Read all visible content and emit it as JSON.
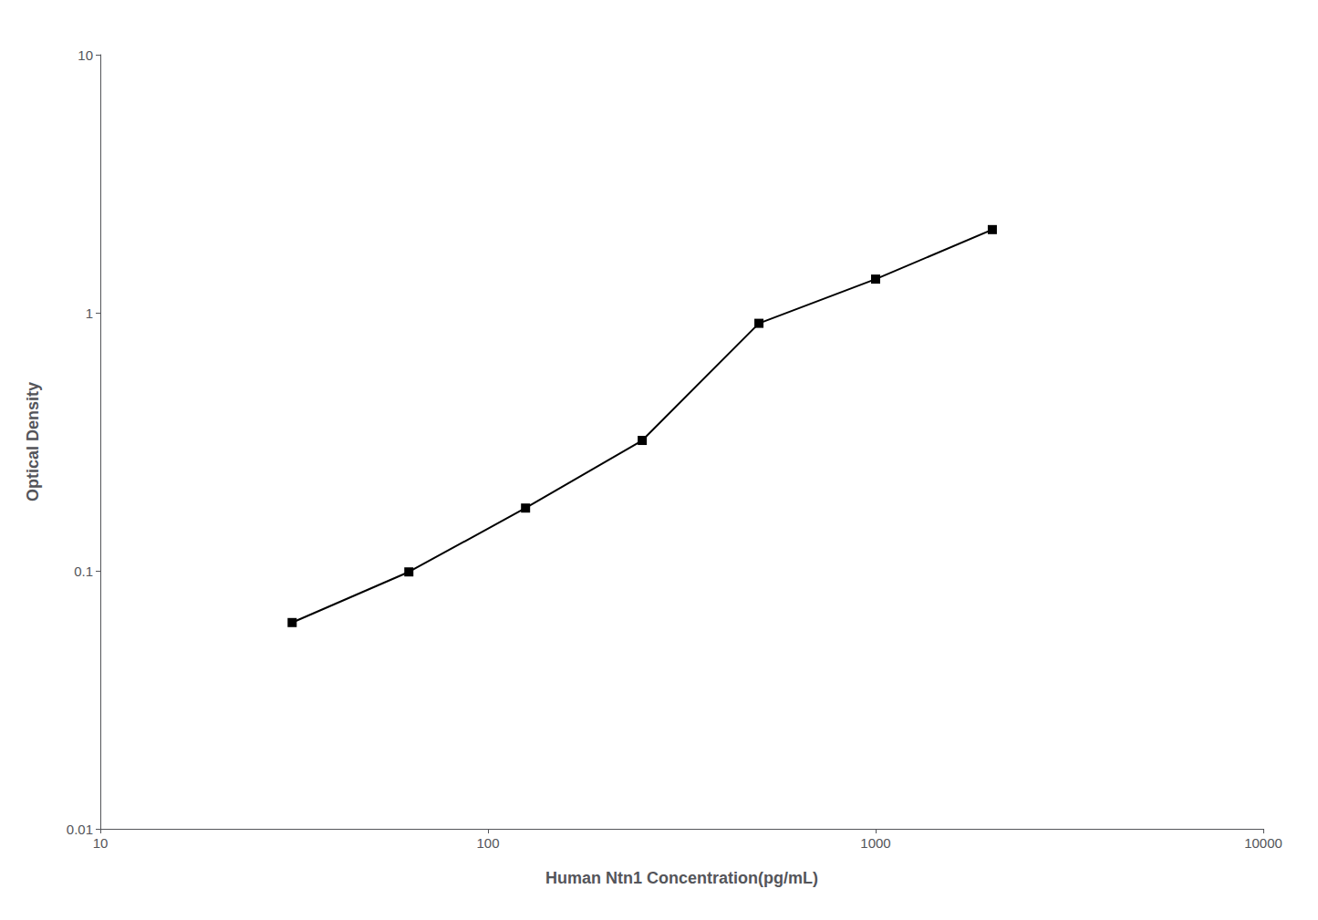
{
  "chart_data": {
    "type": "line",
    "xlabel": "Human Ntn1 Concentration(pg/mL)",
    "ylabel": "Optical Density",
    "x": [
      31.25,
      62.5,
      125,
      250,
      500,
      1000,
      2000
    ],
    "values": [
      0.063,
      0.099,
      0.175,
      0.32,
      0.91,
      1.35,
      2.1
    ],
    "xlim": [
      10,
      10000
    ],
    "ylim": [
      0.01,
      10
    ],
    "xticks": [
      10,
      100,
      1000,
      10000
    ],
    "yticks": [
      0.01,
      0.1,
      1,
      10
    ],
    "log": true,
    "grid": false,
    "color": "#000000",
    "marker": "square"
  }
}
